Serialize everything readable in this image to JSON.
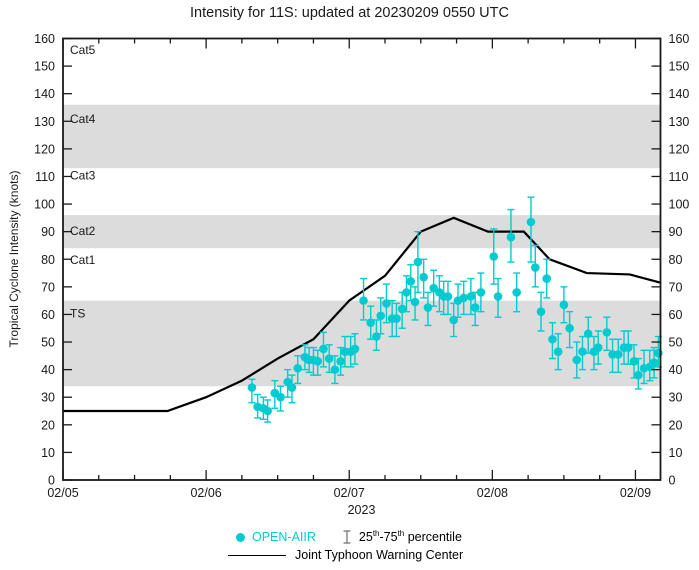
{
  "title": "Intensity for 11S: updated at 20230209 0550 UTC",
  "colors": {
    "accent_cyan": "#00CBD0",
    "jtwc_line": "#000000",
    "band_gray": "#DCDCDC",
    "axis_black": "#1a1a1a",
    "percentile_icon_gray": "#777777"
  },
  "legend": {
    "open_aiir_label": "OPEN-AIIR",
    "percentile_parts": {
      "p1": "25",
      "s1": "th",
      "p2": "-75",
      "s2": "th",
      "p3": " percentile"
    },
    "jtwc_label": "Joint Typhoon Warning Center"
  },
  "chart_data": {
    "type": "scatter",
    "title": "Intensity for 11S: updated at 20230209 0550 UTC",
    "ylabel": "Tropical Cyclone Intensity (knots)",
    "xlabel_year": "2023",
    "x_domain_days": [
      0,
      4.175
    ],
    "ylim": [
      0,
      160
    ],
    "y_ticks": [
      0,
      10,
      20,
      30,
      40,
      50,
      60,
      70,
      80,
      90,
      100,
      110,
      120,
      130,
      140,
      150,
      160
    ],
    "x_major_ticks": [
      {
        "t": 0,
        "label": "02/05"
      },
      {
        "t": 1,
        "label": "02/06"
      },
      {
        "t": 2,
        "label": "02/07"
      },
      {
        "t": 3,
        "label": "02/08"
      },
      {
        "t": 4,
        "label": "02/09"
      }
    ],
    "x_minor_step_days": 0.25,
    "grid": false,
    "legend_position": "bottom",
    "shaded_bands": [
      [
        34,
        65
      ],
      [
        84,
        96
      ],
      [
        113,
        136
      ]
    ],
    "category_labels": [
      {
        "label": "Cat5",
        "knots": 156
      },
      {
        "label": "Cat4",
        "knots": 131
      },
      {
        "label": "Cat3",
        "knots": 110.5
      },
      {
        "label": "Cat2",
        "knots": 90.5
      },
      {
        "label": "Cat1",
        "knots": 80
      },
      {
        "label": "TS",
        "knots": 60.5
      }
    ],
    "series": [
      {
        "name": "Joint Typhoon Warning Center",
        "type": "line",
        "color": "#000000",
        "points": [
          [
            0,
            25
          ],
          [
            0.73,
            25
          ],
          [
            1.0,
            30
          ],
          [
            1.25,
            36
          ],
          [
            1.5,
            44
          ],
          [
            1.75,
            51
          ],
          [
            2.0,
            65
          ],
          [
            2.25,
            74
          ],
          [
            2.5,
            90
          ],
          [
            2.73,
            95
          ],
          [
            2.97,
            90
          ],
          [
            3.22,
            90
          ],
          [
            3.4,
            80
          ],
          [
            3.66,
            75
          ],
          [
            3.96,
            74.5
          ],
          [
            4.175,
            71.5
          ]
        ]
      },
      {
        "name": "OPEN-AIIR",
        "type": "scatter_errorbar",
        "color": "#00CBD0",
        "errorbar_label": "25th-75th percentile",
        "points": [
          [
            1.32,
            33.5,
            28,
            36.5
          ],
          [
            1.36,
            26.5,
            22.5,
            31
          ],
          [
            1.4,
            26,
            22,
            30
          ],
          [
            1.43,
            25,
            21,
            29
          ],
          [
            1.48,
            31.5,
            26,
            36
          ],
          [
            1.52,
            30,
            25,
            34
          ],
          [
            1.57,
            35.5,
            30,
            40
          ],
          [
            1.6,
            33.5,
            28,
            38
          ],
          [
            1.64,
            40.5,
            35,
            45
          ],
          [
            1.69,
            44.5,
            40,
            49
          ],
          [
            1.72,
            43.5,
            39,
            48
          ],
          [
            1.75,
            43.5,
            38,
            48
          ],
          [
            1.78,
            43,
            38,
            47
          ],
          [
            1.82,
            47.5,
            41,
            53.5
          ],
          [
            1.86,
            44,
            39,
            49
          ],
          [
            1.9,
            40,
            35,
            45
          ],
          [
            1.94,
            43,
            38,
            48
          ],
          [
            1.97,
            46.5,
            41,
            52
          ],
          [
            2.01,
            46.5,
            41,
            52
          ],
          [
            2.04,
            47.5,
            42,
            53
          ],
          [
            2.1,
            65,
            58,
            73
          ],
          [
            2.15,
            57,
            51,
            63
          ],
          [
            2.19,
            52,
            47,
            58
          ],
          [
            2.22,
            59.5,
            53,
            66
          ],
          [
            2.26,
            64,
            57,
            71
          ],
          [
            2.3,
            58.5,
            52,
            65
          ],
          [
            2.33,
            58.5,
            52,
            64
          ],
          [
            2.37,
            62,
            55,
            68
          ],
          [
            2.4,
            68,
            61,
            74
          ],
          [
            2.43,
            72,
            65,
            78
          ],
          [
            2.46,
            64.5,
            58,
            70
          ],
          [
            2.48,
            79,
            68,
            90
          ],
          [
            2.52,
            73.5,
            66,
            80
          ],
          [
            2.55,
            62.5,
            56,
            68
          ],
          [
            2.59,
            69.5,
            63,
            76
          ],
          [
            2.63,
            68,
            61,
            74
          ],
          [
            2.66,
            66.5,
            60,
            72
          ],
          [
            2.69,
            66.5,
            60,
            72
          ],
          [
            2.73,
            58,
            52,
            64
          ],
          [
            2.76,
            65,
            59,
            71
          ],
          [
            2.8,
            66,
            60,
            72
          ],
          [
            2.85,
            66.5,
            60,
            73
          ],
          [
            2.88,
            62.5,
            56,
            68
          ],
          [
            2.92,
            68,
            61,
            75
          ],
          [
            3.01,
            81,
            71,
            91
          ],
          [
            3.04,
            66.5,
            59,
            73
          ],
          [
            3.13,
            88,
            79,
            98
          ],
          [
            3.17,
            68,
            61,
            75
          ],
          [
            3.27,
            93.5,
            79,
            102.5
          ],
          [
            3.3,
            77,
            70,
            85
          ],
          [
            3.34,
            61,
            54,
            68
          ],
          [
            3.38,
            73,
            66,
            80
          ],
          [
            3.42,
            51,
            44,
            57
          ],
          [
            3.46,
            46.5,
            40,
            53
          ],
          [
            3.5,
            63.5,
            57,
            70
          ],
          [
            3.54,
            55,
            48,
            61
          ],
          [
            3.59,
            43.5,
            37,
            50
          ],
          [
            3.63,
            46.5,
            40,
            52
          ],
          [
            3.67,
            53,
            46,
            59
          ],
          [
            3.71,
            46.5,
            40,
            52
          ],
          [
            3.74,
            48,
            42,
            54
          ],
          [
            3.8,
            53.5,
            47,
            59
          ],
          [
            3.84,
            45.5,
            39,
            51
          ],
          [
            3.88,
            45.5,
            39,
            51
          ],
          [
            3.92,
            48,
            42,
            54
          ],
          [
            3.95,
            48,
            42,
            54
          ],
          [
            3.99,
            43,
            37,
            49
          ],
          [
            4.02,
            38,
            33,
            44
          ],
          [
            4.06,
            40.5,
            35,
            47
          ],
          [
            4.1,
            41,
            36,
            47
          ],
          [
            4.13,
            42.5,
            37,
            48
          ],
          [
            4.16,
            46,
            41,
            52
          ]
        ]
      }
    ]
  }
}
